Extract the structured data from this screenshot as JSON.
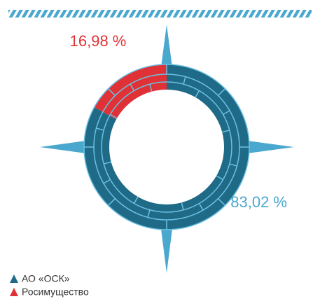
{
  "chart_data": {
    "type": "pie",
    "categories": [
      "АО «ОСК»",
      "Росимущество"
    ],
    "values": [
      83.02,
      16.98
    ],
    "value_labels": [
      "83,02 %",
      "16,98 %"
    ],
    "colors": [
      "#1f6a87",
      "#e03236"
    ],
    "label_colors": [
      "#4aa8cf",
      "#e03236"
    ]
  }
}
